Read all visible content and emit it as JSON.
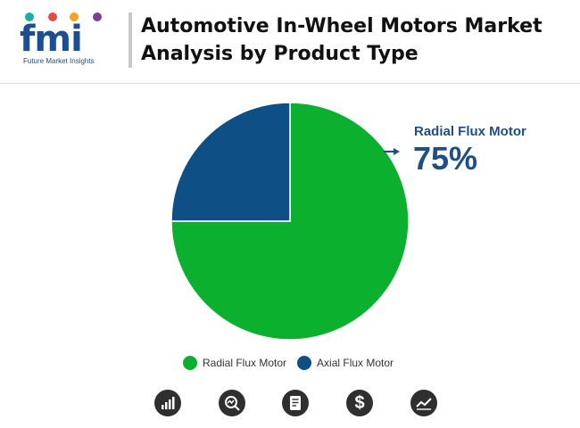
{
  "brand": {
    "logo_text": "fmi",
    "tagline": "Future Market Insights",
    "dot_colors": [
      "#17b0a4",
      "#e84c3d",
      "#f3a21c",
      "#7b3f98"
    ]
  },
  "title": "Automotive In-Wheel Motors Market Analysis by Product Type",
  "callout": {
    "label": "Radial Flux Motor",
    "value": "75%"
  },
  "chart_data": {
    "type": "pie",
    "title": "Automotive In-Wheel Motors Market Analysis by Product Type",
    "slices": [
      {
        "label": "Radial Flux Motor",
        "value": 75,
        "color": "#0bb02f"
      },
      {
        "label": "Axial Flux Motor",
        "value": 25,
        "color": "#0e4f86"
      }
    ],
    "start_angle_deg": 0,
    "direction": "clockwise",
    "legend_position": "bottom",
    "legend": [
      "Radial Flux Motor",
      "Axial Flux Motor"
    ]
  },
  "footer_icons": [
    "bar-chart-icon",
    "magnifier-chart-icon",
    "document-icon",
    "dollar-icon",
    "trend-icon"
  ],
  "footer_dollar_glyph": "$"
}
